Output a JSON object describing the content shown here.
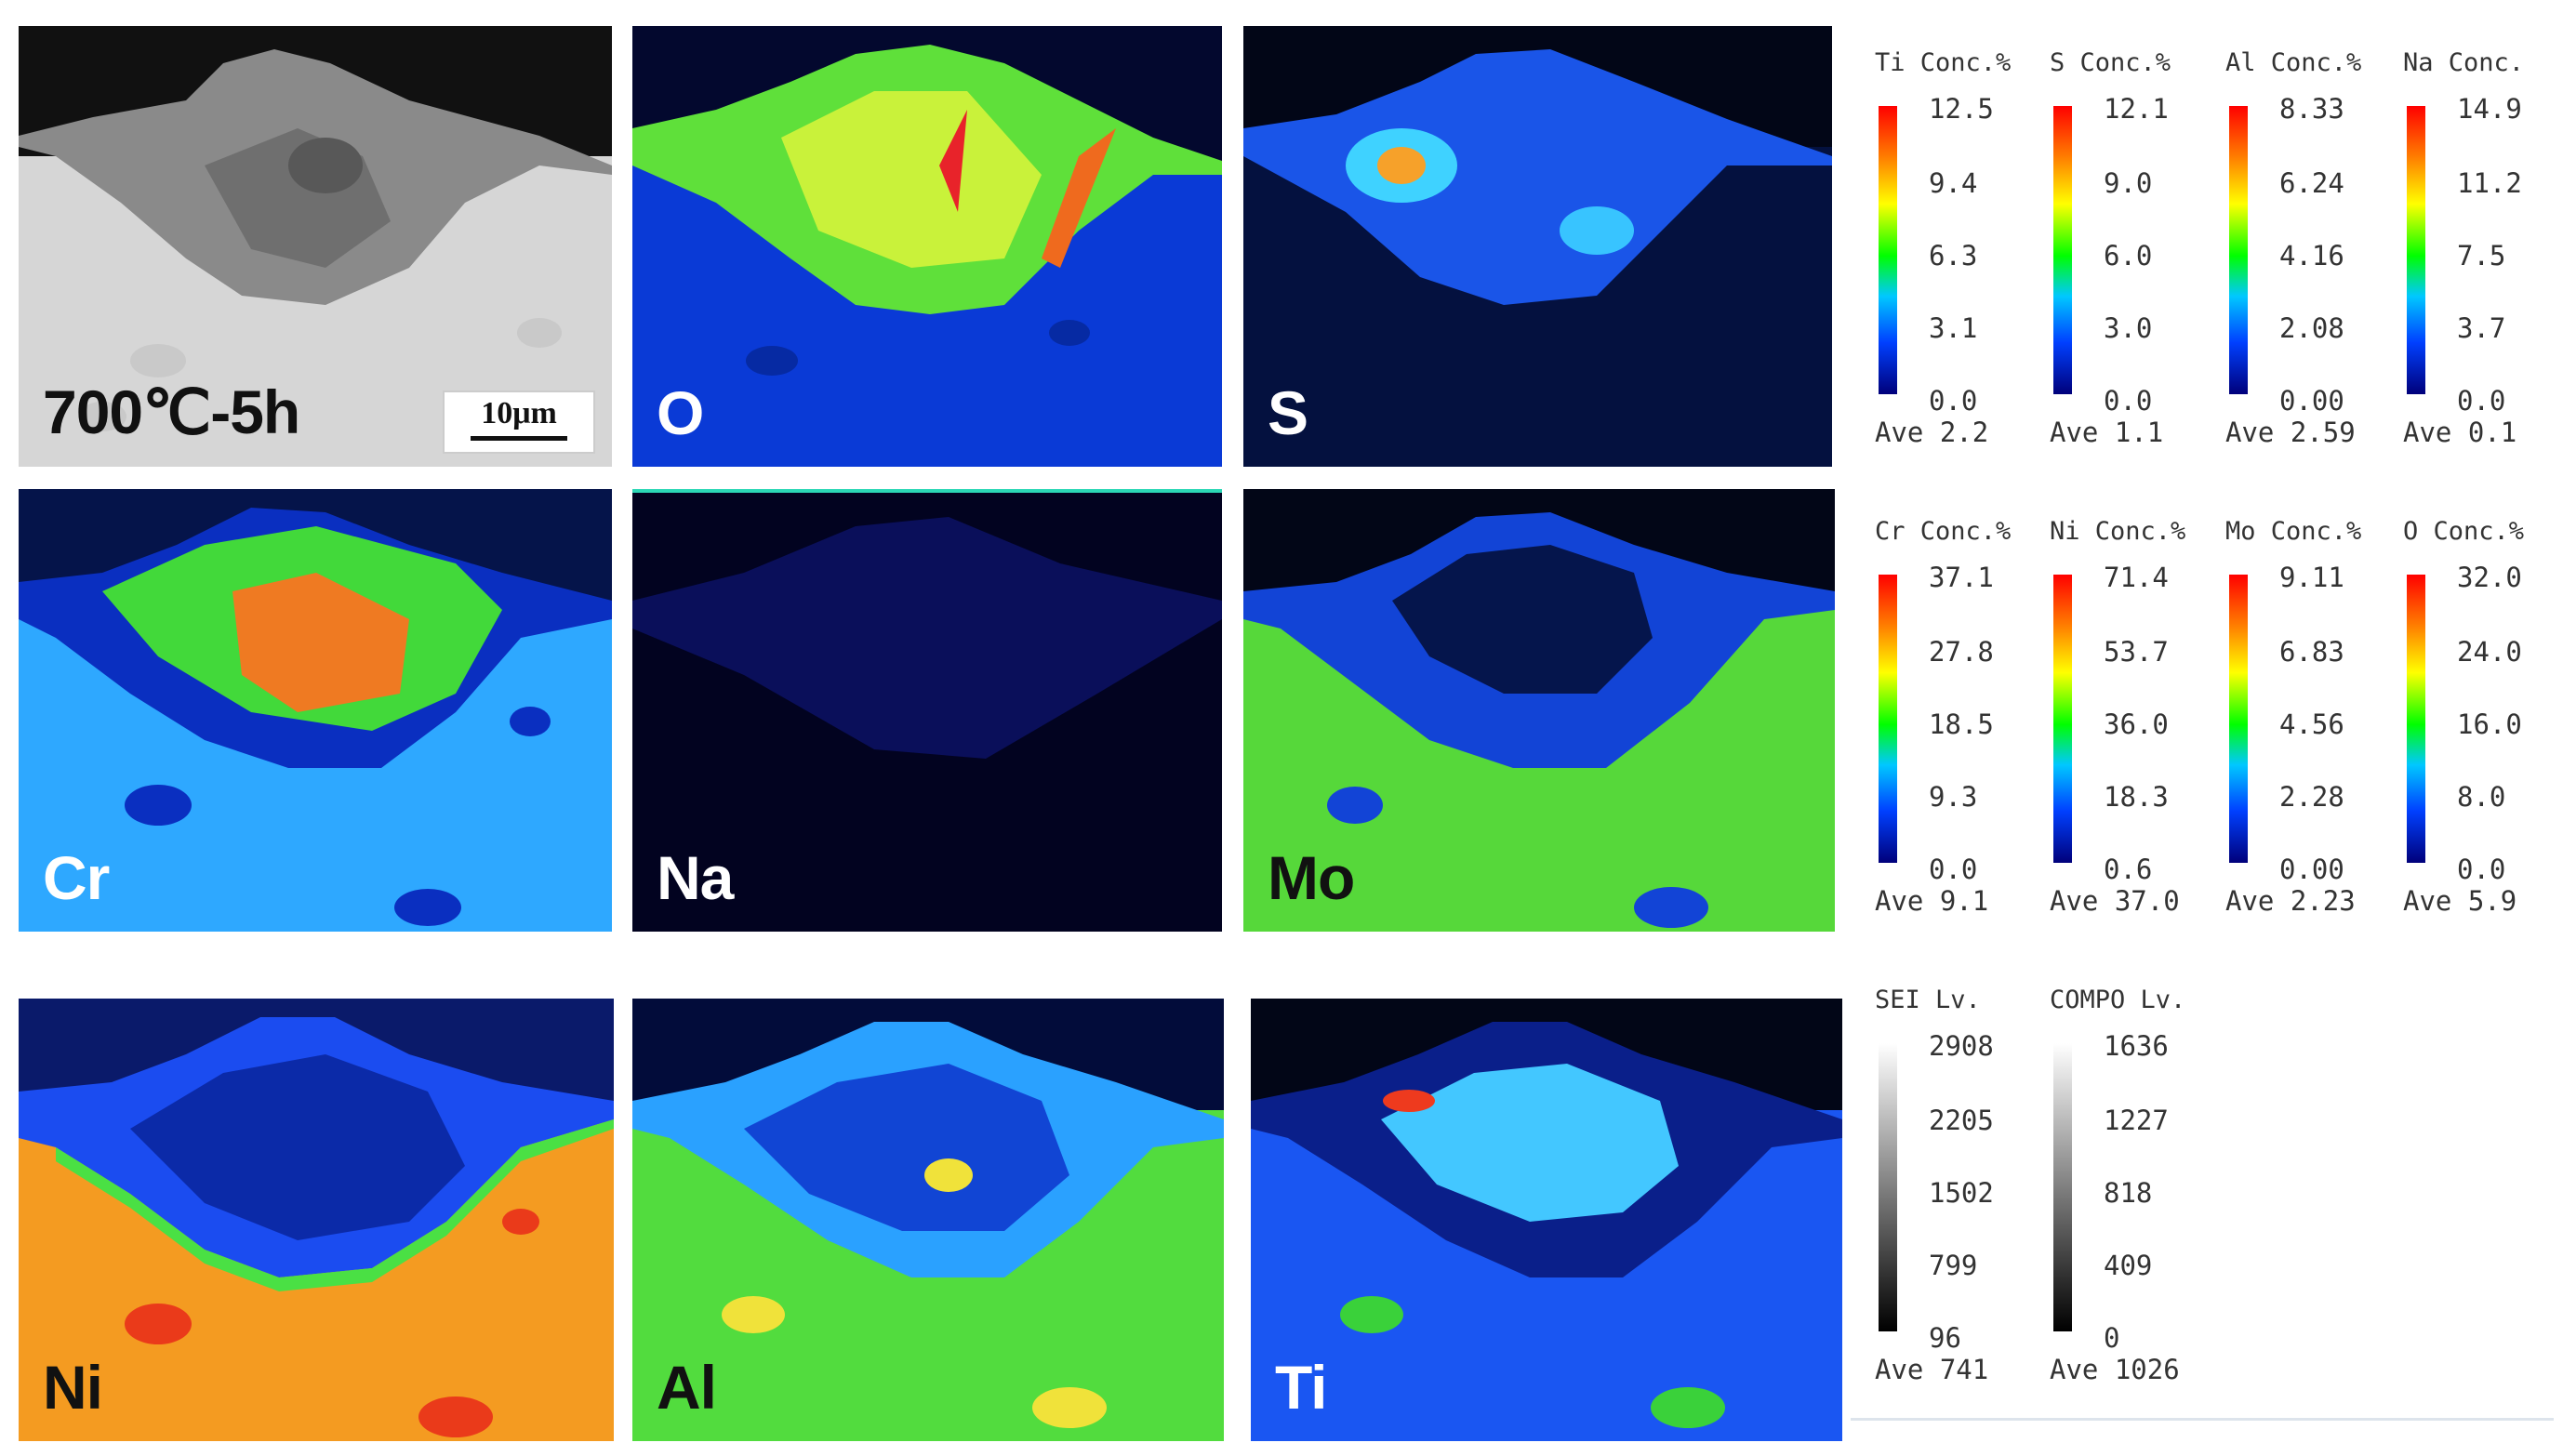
{
  "panels": [
    {
      "id": "sem",
      "label": "700℃-5h",
      "scale_bar": "10μm"
    },
    {
      "id": "O",
      "label": "O"
    },
    {
      "id": "S",
      "label": "S"
    },
    {
      "id": "Cr",
      "label": "Cr"
    },
    {
      "id": "Na",
      "label": "Na"
    },
    {
      "id": "Mo",
      "label": "Mo"
    },
    {
      "id": "Ni",
      "label": "Ni"
    },
    {
      "id": "Al",
      "label": "Al"
    },
    {
      "id": "Ti",
      "label": "Ti"
    }
  ],
  "legends": [
    {
      "head": "Ti Conc.%",
      "ticks": [
        "12.5",
        "9.4",
        "6.3",
        "3.1",
        "0.0"
      ],
      "ave": "Ave 2.2",
      "scale": "rainbow"
    },
    {
      "head": "S Conc.%",
      "ticks": [
        "12.1",
        "9.0",
        "6.0",
        "3.0",
        "0.0"
      ],
      "ave": "Ave 1.1",
      "scale": "rainbow"
    },
    {
      "head": "Al Conc.%",
      "ticks": [
        "8.33",
        "6.24",
        "4.16",
        "2.08",
        "0.00"
      ],
      "ave": "Ave 2.59",
      "scale": "rainbow"
    },
    {
      "head": "Na Conc.",
      "ticks": [
        "14.9",
        "11.2",
        "7.5",
        "3.7",
        "0.0"
      ],
      "ave": "Ave 0.1",
      "scale": "rainbow"
    },
    {
      "head": "Cr Conc.%",
      "ticks": [
        "37.1",
        "27.8",
        "18.5",
        "9.3",
        "0.0"
      ],
      "ave": "Ave 9.1",
      "scale": "rainbow"
    },
    {
      "head": "Ni Conc.%",
      "ticks": [
        "71.4",
        "53.7",
        "36.0",
        "18.3",
        "0.6"
      ],
      "ave": "Ave 37.0",
      "scale": "rainbow"
    },
    {
      "head": "Mo Conc.%",
      "ticks": [
        "9.11",
        "6.83",
        "4.56",
        "2.28",
        "0.00"
      ],
      "ave": "Ave 2.23",
      "scale": "rainbow"
    },
    {
      "head": "O Conc.%",
      "ticks": [
        "32.0",
        "24.0",
        "16.0",
        "8.0",
        "0.0"
      ],
      "ave": "Ave 5.9",
      "scale": "rainbow"
    },
    {
      "head": "SEI Lv.",
      "ticks": [
        "2908",
        "2205",
        "1502",
        "799",
        "96"
      ],
      "ave": "Ave 741",
      "scale": "gray"
    },
    {
      "head": "COMPO Lv.",
      "ticks": [
        "1636",
        "1227",
        "818",
        "409",
        "0"
      ],
      "ave": "Ave 1026",
      "scale": "gray"
    }
  ]
}
